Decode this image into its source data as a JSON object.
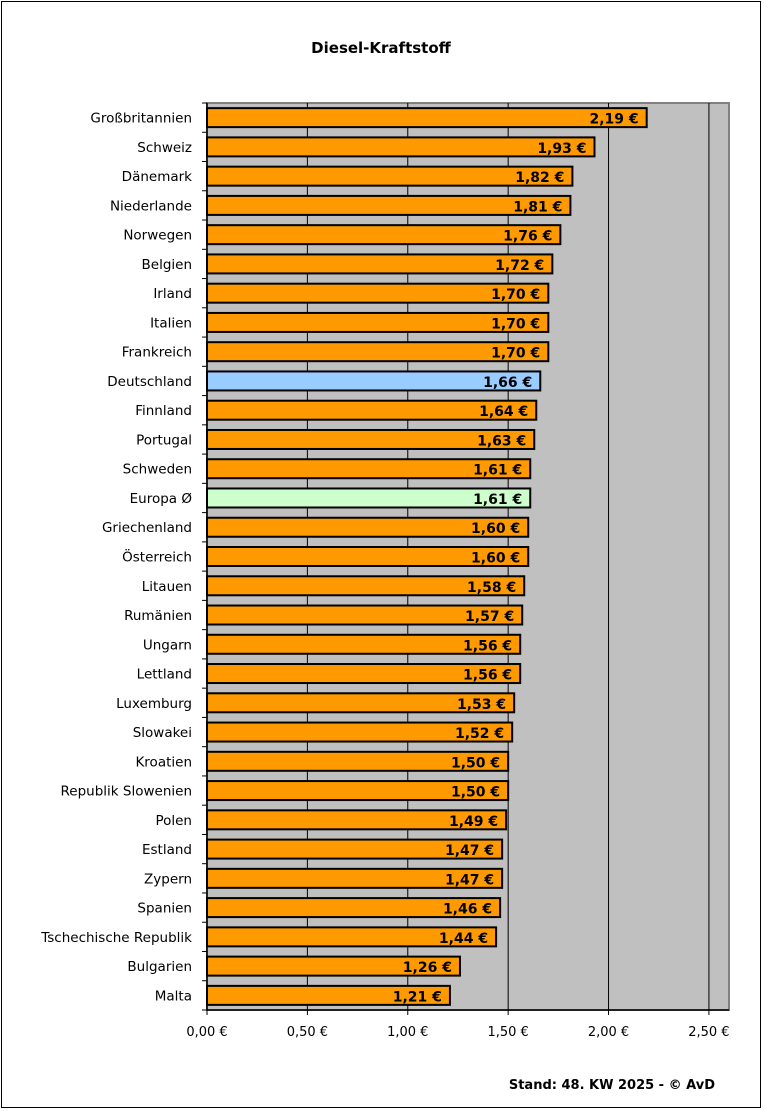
{
  "chart_data": {
    "type": "bar",
    "orientation": "horizontal",
    "title": "Diesel-Kraftstoff",
    "footer": "Stand: 48. KW 2025 - © AvD",
    "categories": [
      "Großbritannien",
      "Schweiz",
      "Dänemark",
      "Niederlande",
      "Norwegen",
      "Belgien",
      "Irland",
      "Italien",
      "Frankreich",
      "Deutschland",
      "Finnland",
      "Portugal",
      "Schweden",
      "Europa Ø",
      "Griechenland",
      "Österreich",
      "Litauen",
      "Rumänien",
      "Ungarn",
      "Lettland",
      "Luxemburg",
      "Slowakei",
      "Kroatien",
      "Republik Slowenien",
      "Polen",
      "Estland",
      "Zypern",
      "Spanien",
      "Tschechische Republik",
      "Bulgarien",
      "Malta"
    ],
    "values": [
      2.19,
      1.93,
      1.82,
      1.81,
      1.76,
      1.72,
      1.7,
      1.7,
      1.7,
      1.66,
      1.64,
      1.63,
      1.61,
      1.61,
      1.6,
      1.6,
      1.58,
      1.57,
      1.56,
      1.56,
      1.53,
      1.52,
      1.5,
      1.5,
      1.49,
      1.47,
      1.47,
      1.46,
      1.44,
      1.26,
      1.21
    ],
    "value_labels": [
      "2,19 €",
      "1,93 €",
      "1,82 €",
      "1,81 €",
      "1,76 €",
      "1,72 €",
      "1,70 €",
      "1,70 €",
      "1,70 €",
      "1,66 €",
      "1,64 €",
      "1,63 €",
      "1,61 €",
      "1,61 €",
      "1,60 €",
      "1,60 €",
      "1,58 €",
      "1,57 €",
      "1,56 €",
      "1,56 €",
      "1,53 €",
      "1,52 €",
      "1,50 €",
      "1,50 €",
      "1,49 €",
      "1,47 €",
      "1,47 €",
      "1,46 €",
      "1,44 €",
      "1,26 €",
      "1,21 €"
    ],
    "xlim": [
      0,
      2.6
    ],
    "x_ticks": [
      0,
      0.5,
      1.0,
      1.5,
      2.0,
      2.5
    ],
    "x_tick_labels": [
      "0,00 €",
      "0,50 €",
      "1,00 €",
      "1,50 €",
      "2,00 €",
      "2,50 €"
    ],
    "grid": "vertical",
    "colors": {
      "default": "#FF9900",
      "Deutschland": "#99CCFF",
      "Europa Ø": "#CCFFCC",
      "plot_background": "#C0C0C0"
    }
  }
}
